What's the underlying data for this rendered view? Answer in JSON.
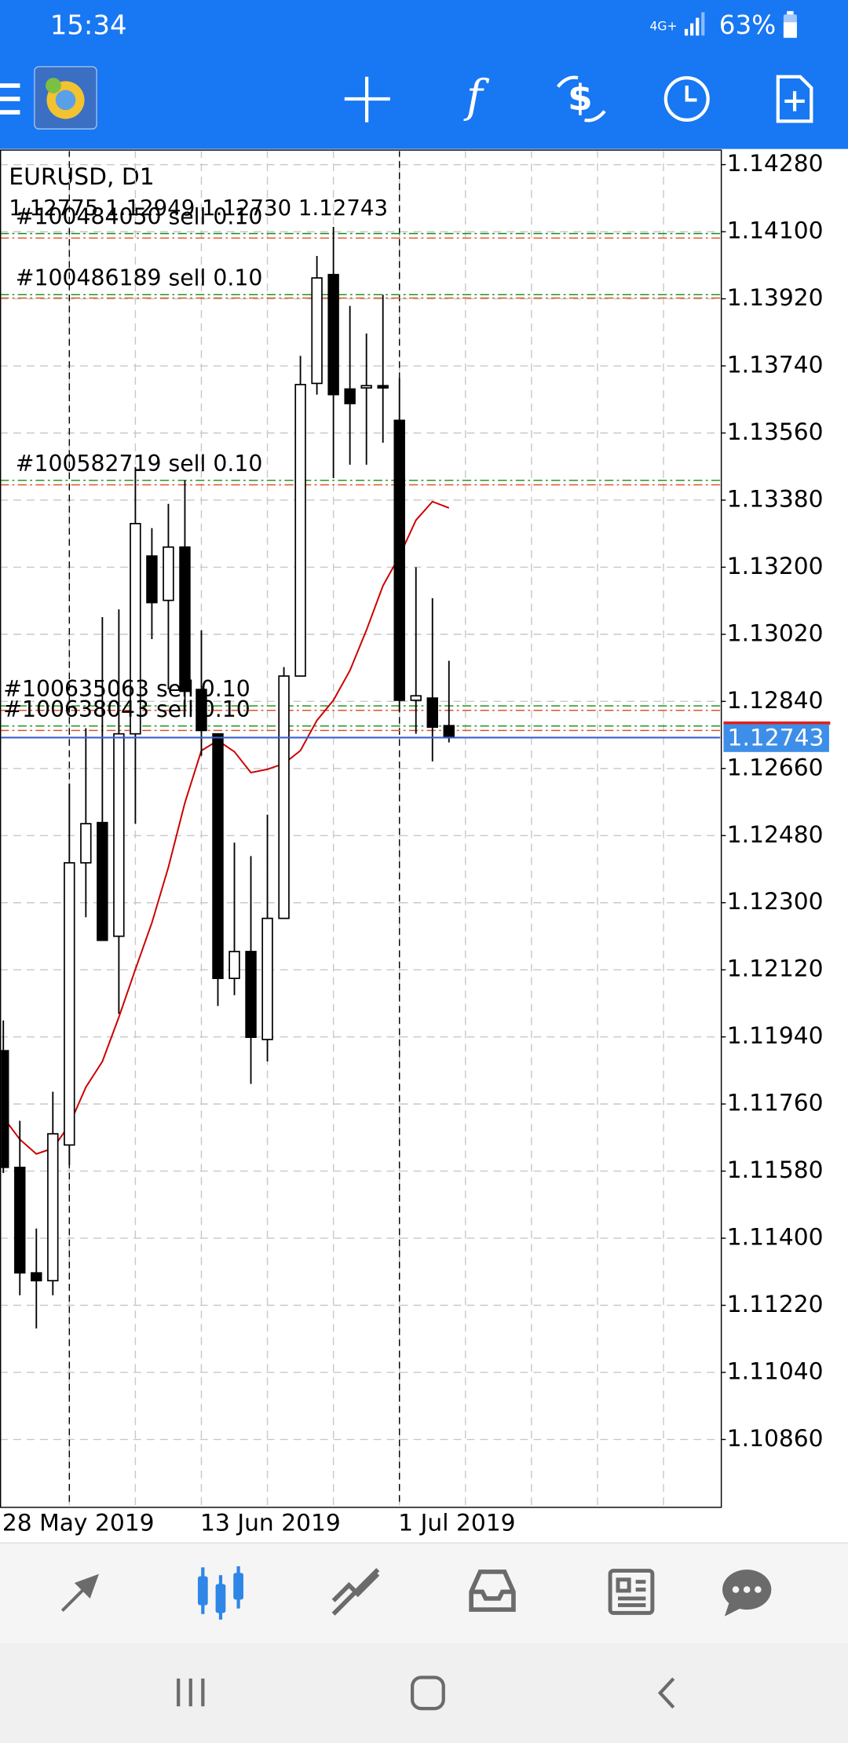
{
  "status_bar": {
    "time": "15:34",
    "network": "4G+",
    "battery": "63%"
  },
  "chart_data": {
    "type": "candlestick",
    "title": "EURUSD, D1",
    "quote": "1.12775 1.12949 1.12730 1.12743",
    "categories": [
      "28 May 2019",
      null,
      null,
      null,
      null,
      null,
      null,
      null,
      null,
      null,
      null,
      null,
      "13 Jun 2019",
      null,
      null,
      null,
      null,
      null,
      null,
      null,
      null,
      null,
      null,
      null,
      "1 Jul 2019",
      null,
      null,
      null
    ],
    "open": [
      1.11903,
      1.1159,
      1.11307,
      1.11286,
      1.1165,
      1.12407,
      1.12515,
      1.1221,
      1.12753,
      1.1323,
      1.13111,
      1.13254,
      1.12872,
      1.12753,
      1.12097,
      1.12169,
      1.11933,
      1.12258,
      1.12908,
      1.13693,
      1.13985,
      1.13678,
      1.13681,
      1.13687,
      1.13594,
      1.12843,
      1.12849,
      1.12775
    ],
    "high": [
      1.11984,
      1.11715,
      1.11426,
      1.11793,
      1.12619,
      1.12768,
      1.13066,
      1.13087,
      1.13469,
      1.13305,
      1.1337,
      1.13433,
      1.13031,
      1.12753,
      1.12461,
      1.12425,
      1.12536,
      1.12932,
      1.13767,
      1.14035,
      1.14113,
      1.13901,
      1.13827,
      1.13931,
      1.13707,
      1.132,
      1.13117,
      1.12949
    ],
    "low": [
      1.11575,
      1.11247,
      1.11158,
      1.11247,
      1.11596,
      1.12261,
      1.12199,
      1.12002,
      1.12512,
      1.13007,
      1.12872,
      1.12813,
      1.12694,
      1.12023,
      1.12052,
      1.11814,
      1.11874,
      1.12258,
      1.12908,
      1.13663,
      1.13439,
      1.13475,
      1.13475,
      1.13534,
      1.12813,
      1.12753,
      1.12679,
      1.1273
    ],
    "close": [
      1.1159,
      1.11307,
      1.11286,
      1.1168,
      1.12407,
      1.12512,
      1.12199,
      1.12753,
      1.13317,
      1.13105,
      1.13254,
      1.12867,
      1.12762,
      1.12097,
      1.12169,
      1.11939,
      1.12258,
      1.12908,
      1.1369,
      1.13976,
      1.13663,
      1.13639,
      1.13687,
      1.13681,
      1.12843,
      1.12855,
      1.12771,
      1.12743
    ],
    "up_color": "#ffffff",
    "down_color": "#000000",
    "series": [
      {
        "color": "#cc0000",
        "values": [
          1.11724,
          1.11665,
          1.11626,
          1.11641,
          1.11704,
          1.11805,
          1.11874,
          1.11993,
          1.12121,
          1.12246,
          1.12395,
          1.12568,
          1.12708,
          1.12735,
          1.12705,
          1.12649,
          1.12658,
          1.12673,
          1.12708,
          1.12789,
          1.12843,
          1.12923,
          1.13031,
          1.1315,
          1.1323,
          1.13326,
          1.13376,
          1.13359
        ]
      }
    ],
    "orders": [
      {
        "label": "#100484050 sell 0.10",
        "price": 1.14095,
        "sl": 1.14083
      },
      {
        "label": "#100486189 sell 0.10",
        "price": 1.13931,
        "sl": 1.13922
      },
      {
        "label": "#100582719 sell 0.10",
        "price": 1.13433,
        "sl": 1.13421
      },
      {
        "label": "#100635063 sell 0.10",
        "price": 1.12828,
        "sl": 1.12816
      },
      {
        "label": "#100638043 sell 0.10",
        "price": 1.12774,
        "sl": 1.12762
      }
    ],
    "bid": 1.12743,
    "ylim": [
      1.10678,
      1.14319
    ],
    "yticks": [
      {
        "value": 1.1428,
        "label": "1.14280"
      },
      {
        "value": 1.141,
        "label": "1.14100"
      },
      {
        "value": 1.1392,
        "label": "1.13920"
      },
      {
        "value": 1.1374,
        "label": "1.13740"
      },
      {
        "value": 1.1356,
        "label": "1.13560"
      },
      {
        "value": 1.1338,
        "label": "1.13380"
      },
      {
        "value": 1.132,
        "label": "1.13200"
      },
      {
        "value": 1.1302,
        "label": "1.13020"
      },
      {
        "value": 1.1284,
        "label": "1.12840"
      },
      {
        "value": 1.1266,
        "label": "1.12660"
      },
      {
        "value": 1.1248,
        "label": "1.12480"
      },
      {
        "value": 1.123,
        "label": "1.12300"
      },
      {
        "value": 1.1212,
        "label": "1.12120"
      },
      {
        "value": 1.1194,
        "label": "1.11940"
      },
      {
        "value": 1.1176,
        "label": "1.11760"
      },
      {
        "value": 1.1158,
        "label": "1.11580"
      },
      {
        "value": 1.114,
        "label": "1.11400"
      },
      {
        "value": 1.1122,
        "label": "1.11220"
      },
      {
        "value": 1.1104,
        "label": "1.11040"
      },
      {
        "value": 1.1086,
        "label": "1.10860"
      }
    ],
    "grid": true
  }
}
